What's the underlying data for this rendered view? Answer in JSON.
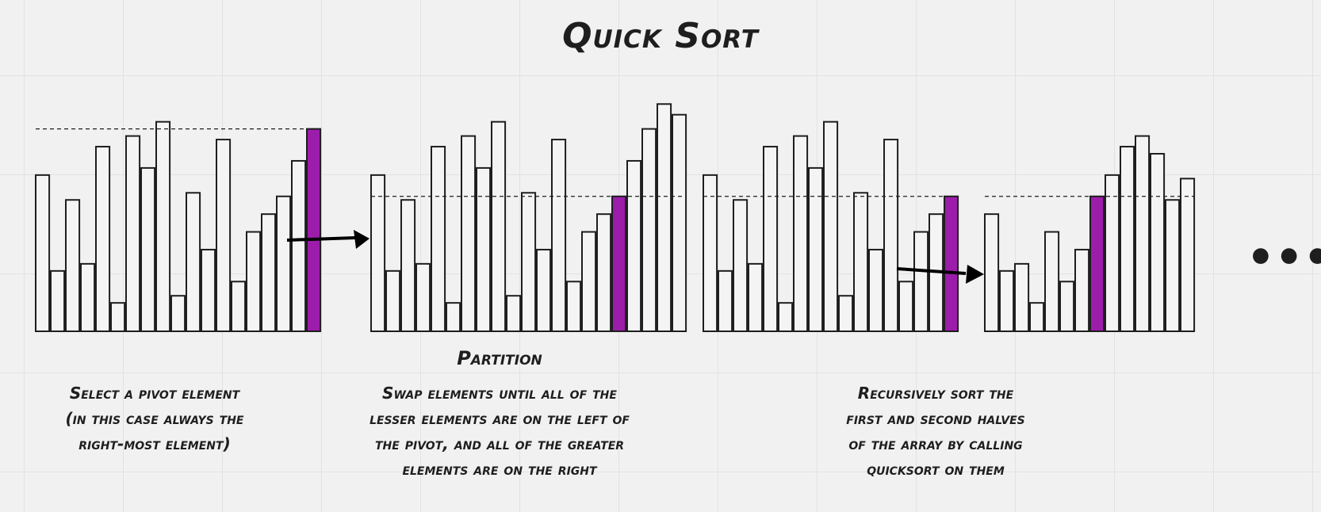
{
  "title": "Quick Sort",
  "partition_heading": "Partition",
  "captions": [
    [
      "Select a pivot element",
      "(in this case always the",
      "right-most element)"
    ],
    [
      "Swap elements until all of the",
      "lesser elements are on the left of",
      "the pivot, and all of the greater",
      "elements are on the right"
    ],
    [
      "Recursively sort the",
      "first and second halves",
      "of the array by calling",
      "quicksort on them"
    ]
  ],
  "ellipsis": "•••",
  "colors": {
    "pivot": "#9c1daa",
    "bar": "#f4f4f4",
    "stroke": "#1e1e1e",
    "background": "#f1f1f1"
  },
  "arrays": [
    {
      "name": "unsorted",
      "values": [
        44,
        17,
        37,
        19,
        52,
        8,
        55,
        46,
        59,
        10,
        39,
        23,
        54,
        14,
        28,
        33,
        38,
        48,
        57
      ],
      "pivot_index": 18
    },
    {
      "name": "partitioned",
      "values": [
        44,
        17,
        37,
        19,
        52,
        8,
        55,
        46,
        59,
        10,
        39,
        23,
        54,
        14,
        28,
        33,
        38,
        48,
        57,
        64,
        61
      ],
      "pivot_index": 16
    },
    {
      "name": "left-half",
      "values": [
        44,
        17,
        37,
        19,
        52,
        8,
        55,
        46,
        59,
        10,
        39,
        23,
        54,
        14,
        28,
        33,
        38
      ],
      "pivot_index": 16
    },
    {
      "name": "recursed",
      "values": [
        33,
        17,
        19,
        8,
        28,
        14,
        23,
        38,
        44,
        52,
        55,
        50,
        37,
        43
      ],
      "pivot_index": 7
    }
  ]
}
